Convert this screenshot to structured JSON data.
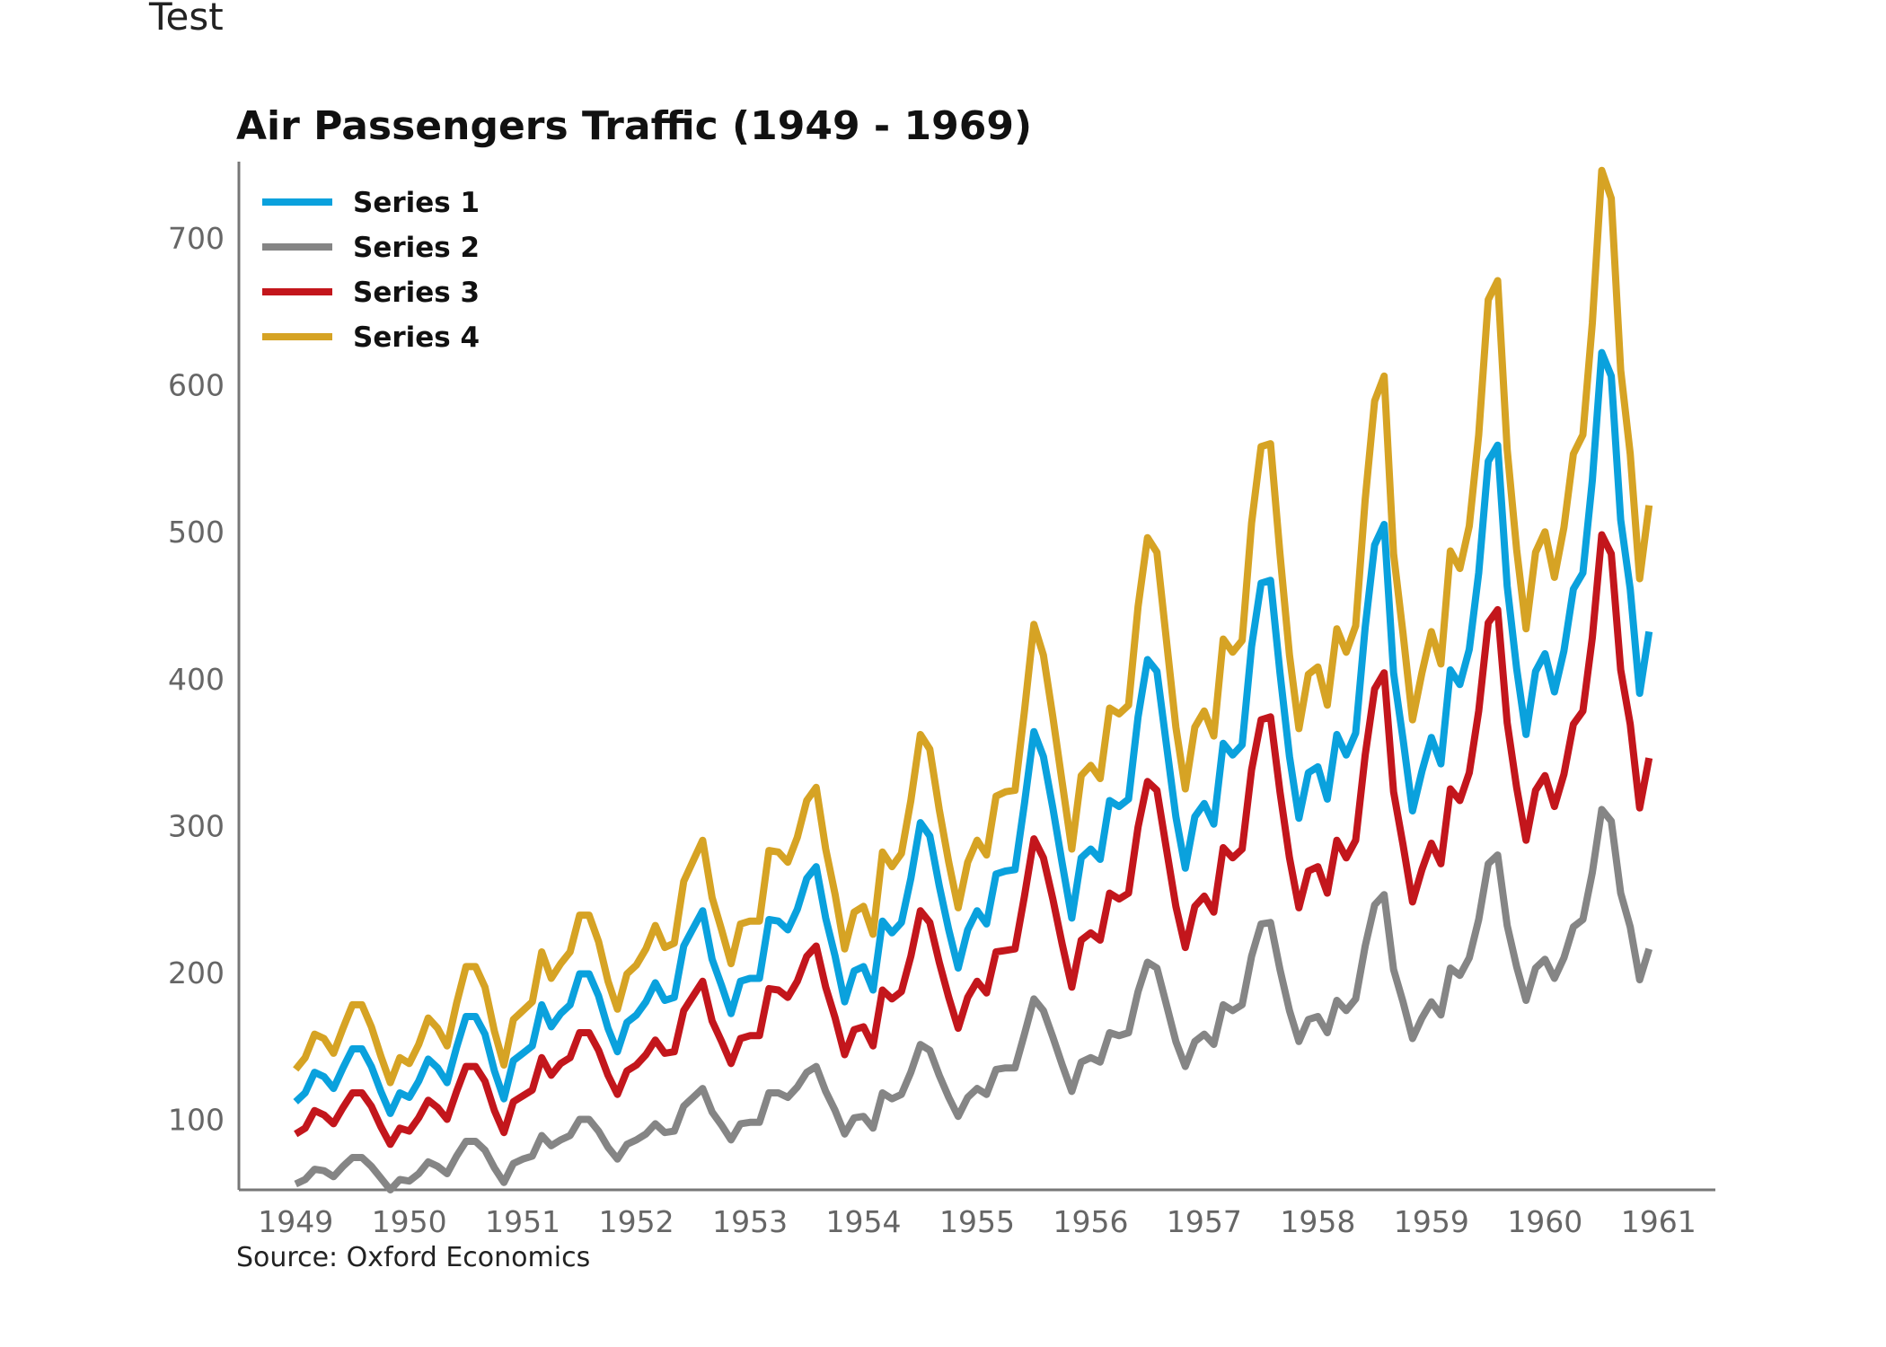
{
  "header": {
    "label": "Test"
  },
  "chart_data": {
    "type": "line",
    "title": "Air Passengers Traffic (1949 - 1969)",
    "source": "Source: Oxford Economics",
    "xlabel": "",
    "ylabel": "",
    "xlim": [
      1948.5,
      1961.5
    ],
    "ylim": [
      52,
      752
    ],
    "x_ticks": [
      "1949",
      "1950",
      "1951",
      "1952",
      "1953",
      "1954",
      "1955",
      "1956",
      "1957",
      "1958",
      "1959",
      "1960",
      "1961"
    ],
    "y_ticks": [
      100,
      200,
      300,
      400,
      500,
      600,
      700
    ],
    "legend_position": "top-left",
    "grid": false,
    "x_start": 1949,
    "x_step": 0.0833333,
    "series": [
      {
        "name": "Series 1",
        "color": "#0aa1dd",
        "values": [
          112,
          118,
          132,
          129,
          121,
          135,
          148,
          148,
          136,
          119,
          104,
          118,
          115,
          126,
          141,
          135,
          125,
          149,
          170,
          170,
          158,
          133,
          114,
          140,
          145,
          150,
          178,
          163,
          172,
          178,
          199,
          199,
          184,
          162,
          146,
          166,
          171,
          180,
          193,
          181,
          183,
          218,
          230,
          242,
          209,
          191,
          172,
          194,
          196,
          196,
          236,
          235,
          229,
          243,
          264,
          272,
          237,
          211,
          180,
          201,
          204,
          188,
          235,
          227,
          234,
          264,
          302,
          293,
          259,
          229,
          203,
          229,
          242,
          233,
          267,
          269,
          270,
          315,
          364,
          347,
          312,
          274,
          237,
          278,
          284,
          277,
          317,
          313,
          318,
          374,
          413,
          405,
          355,
          306,
          271,
          306,
          315,
          301,
          356,
          348,
          355,
          422,
          465,
          467,
          404,
          347,
          305,
          336,
          340,
          318,
          362,
          348,
          363,
          435,
          491,
          505,
          404,
          359,
          310,
          337,
          360,
          342,
          406,
          396,
          420,
          472,
          548,
          559,
          463,
          407,
          362,
          405,
          417,
          391,
          419,
          461,
          472,
          535,
          622,
          606,
          508,
          461,
          390,
          432
        ]
      },
      {
        "name": "Series 2",
        "color": "#858585",
        "values": [
          56,
          59,
          66,
          65,
          61,
          68,
          74,
          74,
          68,
          60,
          52,
          59,
          58,
          63,
          71,
          68,
          63,
          75,
          85,
          85,
          79,
          67,
          57,
          70,
          73,
          75,
          89,
          82,
          86,
          89,
          100,
          100,
          92,
          81,
          73,
          83,
          86,
          90,
          97,
          91,
          92,
          109,
          115,
          121,
          105,
          96,
          86,
          97,
          98,
          98,
          118,
          118,
          115,
          122,
          132,
          136,
          119,
          106,
          90,
          101,
          102,
          94,
          118,
          114,
          117,
          132,
          151,
          147,
          130,
          115,
          102,
          115,
          121,
          117,
          134,
          135,
          135,
          158,
          182,
          174,
          156,
          137,
          119,
          139,
          142,
          139,
          159,
          157,
          159,
          187,
          207,
          203,
          178,
          153,
          136,
          153,
          158,
          151,
          178,
          174,
          178,
          211,
          233,
          234,
          202,
          174,
          153,
          168,
          170,
          159,
          181,
          174,
          182,
          218,
          246,
          253,
          202,
          180,
          155,
          169,
          180,
          171,
          203,
          198,
          210,
          236,
          274,
          280,
          232,
          204,
          181,
          203,
          209,
          196,
          210,
          231,
          236,
          268,
          311,
          303,
          254,
          231,
          195,
          216
        ]
      },
      {
        "name": "Series 3",
        "color": "#c3161c",
        "values": [
          90,
          94,
          106,
          103,
          97,
          108,
          118,
          118,
          109,
          95,
          83,
          94,
          92,
          101,
          113,
          108,
          100,
          119,
          136,
          136,
          126,
          106,
          91,
          112,
          116,
          120,
          142,
          130,
          138,
          142,
          159,
          159,
          147,
          130,
          117,
          133,
          137,
          144,
          154,
          145,
          146,
          174,
          184,
          194,
          167,
          153,
          138,
          155,
          157,
          157,
          189,
          188,
          183,
          194,
          211,
          218,
          190,
          169,
          144,
          161,
          163,
          150,
          188,
          182,
          187,
          211,
          242,
          234,
          207,
          183,
          162,
          183,
          194,
          186,
          214,
          215,
          216,
          252,
          291,
          278,
          250,
          219,
          190,
          222,
          227,
          222,
          254,
          250,
          254,
          299,
          330,
          324,
          284,
          245,
          217,
          245,
          252,
          241,
          285,
          278,
          284,
          338,
          372,
          374,
          323,
          278,
          244,
          269,
          272,
          254,
          290,
          278,
          290,
          348,
          393,
          404,
          323,
          287,
          248,
          270,
          288,
          274,
          325,
          317,
          336,
          378,
          438,
          447,
          370,
          326,
          290,
          324,
          334,
          313,
          335,
          369,
          378,
          428,
          498,
          485,
          406,
          369,
          312,
          346
        ]
      },
      {
        "name": "Series 4",
        "color": "#d6a324",
        "values": [
          134,
          142,
          158,
          155,
          145,
          162,
          178,
          178,
          163,
          143,
          125,
          142,
          138,
          151,
          169,
          162,
          150,
          179,
          204,
          204,
          190,
          160,
          137,
          168,
          174,
          180,
          214,
          196,
          206,
          214,
          239,
          239,
          221,
          194,
          175,
          199,
          205,
          216,
          232,
          217,
          220,
          262,
          276,
          290,
          251,
          229,
          206,
          233,
          235,
          235,
          283,
          282,
          275,
          292,
          317,
          326,
          284,
          253,
          216,
          241,
          245,
          226,
          282,
          272,
          281,
          317,
          362,
          352,
          311,
          275,
          244,
          275,
          290,
          280,
          320,
          323,
          324,
          378,
          437,
          416,
          374,
          329,
          284,
          334,
          341,
          332,
          380,
          376,
          382,
          449,
          496,
          486,
          426,
          367,
          325,
          367,
          378,
          361,
          427,
          418,
          426,
          506,
          558,
          560,
          485,
          416,
          366,
          403,
          408,
          382,
          434,
          418,
          436,
          522,
          589,
          606,
          485,
          431,
          372,
          404,
          432,
          410,
          487,
          475,
          504,
          566,
          658,
          671,
          556,
          488,
          434,
          486,
          500,
          469,
          503,
          553,
          566,
          642,
          746,
          727,
          610,
          553,
          468,
          518
        ]
      }
    ]
  }
}
